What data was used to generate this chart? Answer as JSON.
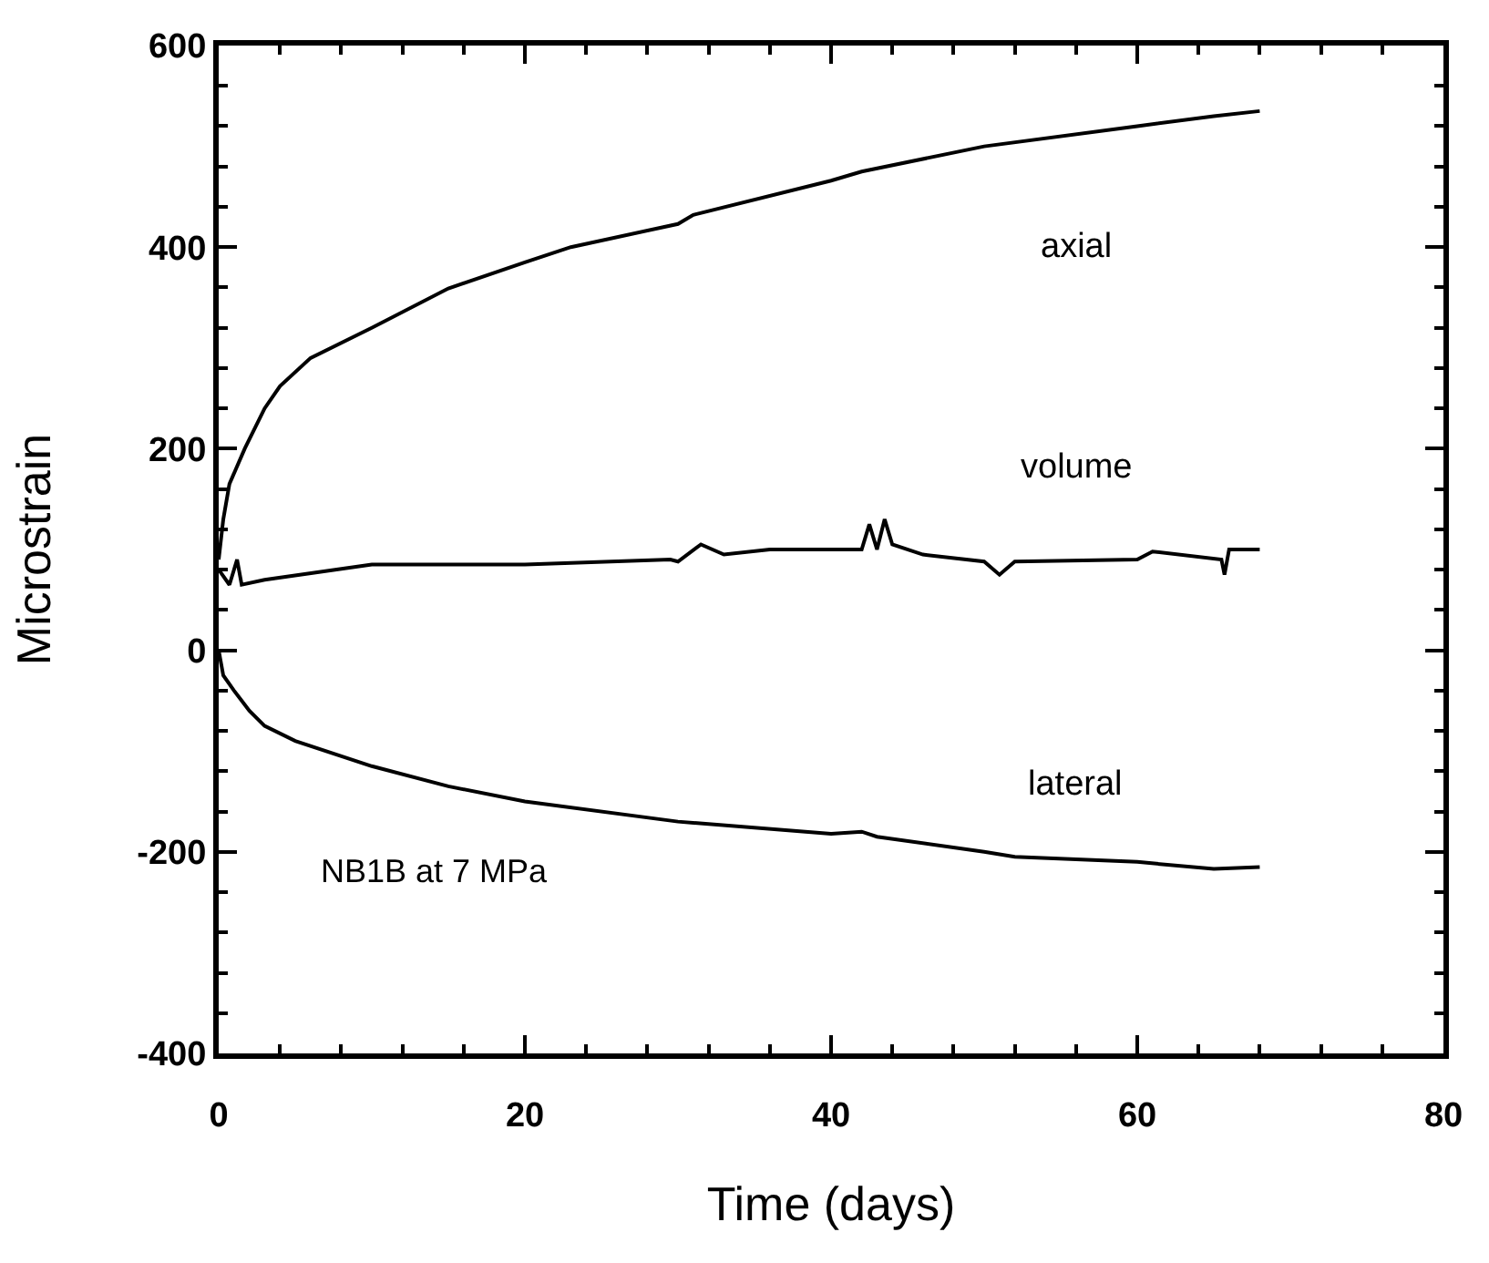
{
  "chart_data": {
    "type": "line",
    "xlabel": "Time (days)",
    "ylabel": "Microstrain",
    "xlim": [
      0,
      80
    ],
    "xticks": [
      0,
      20,
      40,
      60,
      80
    ],
    "ylim": [
      -400,
      600
    ],
    "yticks": [
      -400,
      -200,
      0,
      200,
      400,
      600
    ],
    "legend": false,
    "marker": "none",
    "line_style": "solid",
    "annotations": [
      "NB1B at 7 MPa"
    ],
    "series": [
      {
        "name": "axial",
        "color": "#000000",
        "x": [
          0,
          0.3,
          0.7,
          1.7,
          3,
          4,
          6,
          10,
          15,
          20,
          23,
          30,
          31,
          40,
          42,
          50,
          60,
          65,
          68
        ],
        "values": [
          90,
          130,
          165,
          200,
          240,
          262,
          290,
          320,
          359,
          385,
          400,
          423,
          432,
          466,
          475,
          500,
          520,
          530,
          535
        ]
      },
      {
        "name": "volume",
        "color": "#000000",
        "x": [
          0,
          0.7,
          1.2,
          1.5,
          3,
          10,
          20,
          29.5,
          30,
          31.5,
          33,
          36,
          42,
          42.5,
          43,
          43.5,
          44,
          46,
          50,
          51,
          52,
          60,
          61,
          65.5,
          65.7,
          66,
          68
        ],
        "values": [
          80,
          65,
          90,
          65,
          70,
          85,
          85,
          90,
          88,
          105,
          95,
          100,
          100,
          125,
          100,
          130,
          105,
          95,
          88,
          75,
          88,
          90,
          98,
          90,
          75,
          100,
          100
        ]
      },
      {
        "name": "lateral",
        "color": "#000000",
        "x": [
          0,
          0.3,
          1,
          2,
          3,
          5,
          10,
          15,
          20,
          30,
          40,
          42,
          43,
          50,
          52,
          60,
          65,
          68
        ],
        "values": [
          0,
          -25,
          -40,
          -60,
          -75,
          -90,
          -115,
          -135,
          -150,
          -170,
          -182,
          -180,
          -185,
          -200,
          -205,
          -210,
          -217,
          -215
        ]
      }
    ]
  }
}
